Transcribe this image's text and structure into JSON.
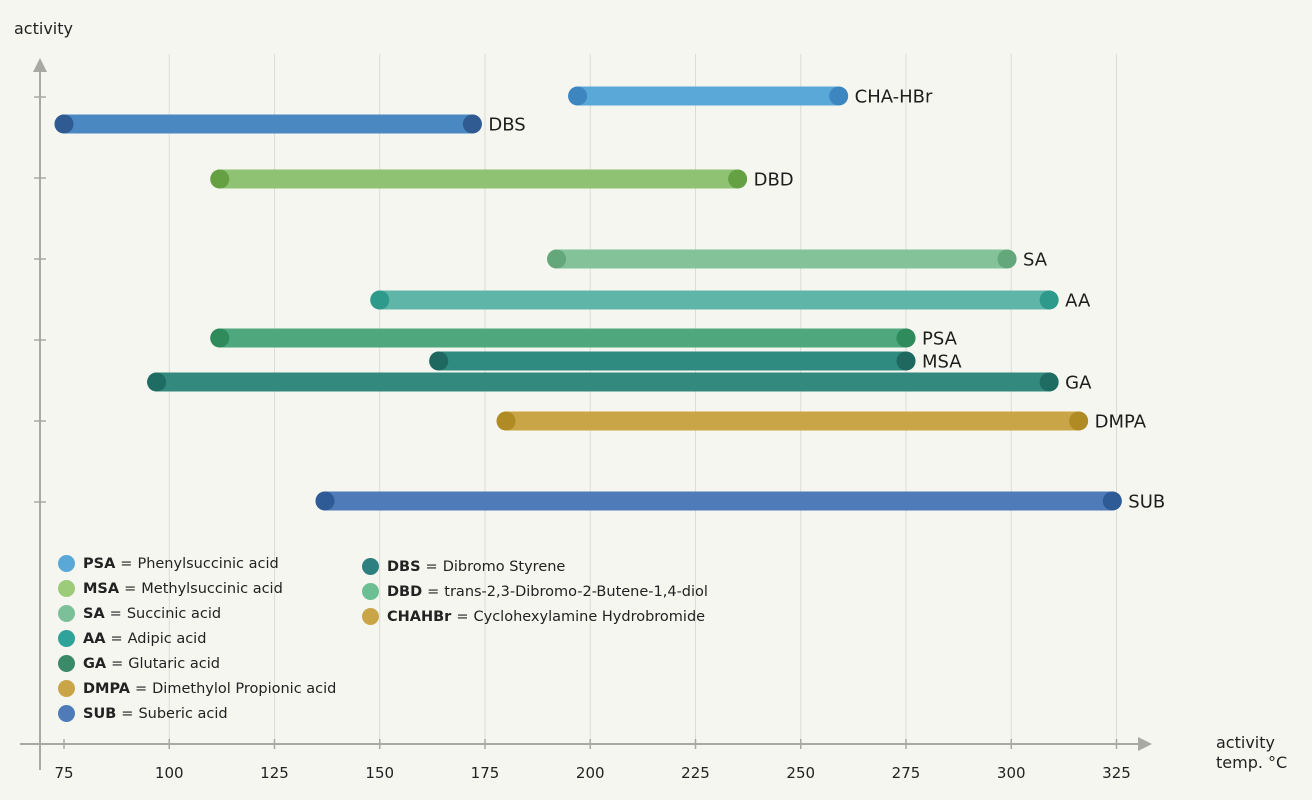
{
  "chart_data": {
    "type": "range-bar",
    "y_axis_label": "activity",
    "x_axis_label": [
      "activity",
      "temp. °C"
    ],
    "x_ticks": [
      "75",
      "100",
      "125",
      "150",
      "175",
      "200",
      "225",
      "250",
      "275",
      "300",
      "325"
    ],
    "x_range": [
      72,
      330
    ],
    "grid": "vertical",
    "series": [
      {
        "name": "CHA-HBr",
        "start": 197,
        "end": 259,
        "color": "#5aa8d8",
        "cap": "#3e86bf"
      },
      {
        "name": "DBS",
        "start": 75,
        "end": 172,
        "color": "#4a88c2",
        "cap": "#2f5a92"
      },
      {
        "name": "DBD",
        "start": 112,
        "end": 235,
        "color": "#8fc373",
        "cap": "#65a043"
      },
      {
        "name": "SA",
        "start": 192,
        "end": 299,
        "color": "#84c29a",
        "cap": "#63a77a"
      },
      {
        "name": "AA",
        "start": 150,
        "end": 309,
        "color": "#5eb5a8",
        "cap": "#2d9a8c"
      },
      {
        "name": "PSA",
        "start": 112,
        "end": 275,
        "color": "#4ea77d",
        "cap": "#2f8a5c"
      },
      {
        "name": "MSA",
        "start": 164,
        "end": 275,
        "color": "#2f8a80",
        "cap": "#1f6860"
      },
      {
        "name": "GA",
        "start": 97,
        "end": 309,
        "color": "#34897f",
        "cap": "#1f6c62"
      },
      {
        "name": "DMPA",
        "start": 180,
        "end": 316,
        "color": "#c9a548",
        "cap": "#b08a22"
      },
      {
        "name": "SUB",
        "start": 137,
        "end": 324,
        "color": "#4f7bb8",
        "cap": "#2e5a96"
      }
    ]
  },
  "legend_left": [
    {
      "abbr": "PSA",
      "eq": "=",
      "name": "Phenylsuccinic acid",
      "color": "#5aa8d8"
    },
    {
      "abbr": "MSA",
      "eq": "=",
      "name": "Methylsuccinic acid",
      "color": "#9ccb7a"
    },
    {
      "abbr": "SA",
      "eq": "=",
      "name": "Succinic acid",
      "color": "#7cc09a"
    },
    {
      "abbr": "AA",
      "eq": "=",
      "name": "Adipic acid",
      "color": "#2fa39a"
    },
    {
      "abbr": "GA",
      "eq": "=",
      "name": "Glutaric acid",
      "color": "#3a8a68"
    },
    {
      "abbr": "DMPA",
      "eq": "=",
      "name": "Dimethylol Propionic acid",
      "color": "#c9a548"
    },
    {
      "abbr": "SUB",
      "eq": "=",
      "name": "Suberic acid",
      "color": "#4f7bb8"
    }
  ],
  "legend_right": [
    {
      "abbr": "DBS",
      "eq": "=",
      "name": "Dibromo Styrene",
      "color": "#2e7f80"
    },
    {
      "abbr": "DBD",
      "eq": "=",
      "name": "trans-2,3-Dibromo-2-Butene-1,4-diol",
      "color": "#6cbf93"
    },
    {
      "abbr": "CHAHBr",
      "eq": "=",
      "name": "Cyclohexylamine Hydrobromide",
      "color": "#c9a548"
    }
  ]
}
